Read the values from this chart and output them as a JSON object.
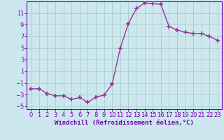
{
  "x": [
    0,
    1,
    2,
    3,
    4,
    5,
    6,
    7,
    8,
    9,
    10,
    11,
    12,
    13,
    14,
    15,
    16,
    17,
    18,
    19,
    20,
    21,
    22,
    23
  ],
  "y": [
    -2,
    -2,
    -2.8,
    -3.2,
    -3.2,
    -3.8,
    -3.5,
    -4.3,
    -3.4,
    -3.1,
    -1.2,
    5.0,
    9.2,
    11.8,
    12.7,
    12.6,
    12.5,
    8.7,
    8.1,
    7.7,
    7.5,
    7.5,
    7.0,
    6.3
  ],
  "line_color": "#993399",
  "marker": "+",
  "marker_size": 4,
  "marker_lw": 1.2,
  "bg_color": "#cce8ee",
  "grid_color": "#aacccc",
  "xlabel": "Windchill (Refroidissement éolien,°C)",
  "ylim": [
    -5.5,
    13.0
  ],
  "xlim": [
    -0.5,
    23.5
  ],
  "yticks": [
    -5,
    -3,
    -1,
    1,
    3,
    5,
    7,
    9,
    11
  ],
  "xtick_labels": [
    "0",
    "1",
    "2",
    "3",
    "4",
    "5",
    "6",
    "7",
    "8",
    "9",
    "10",
    "11",
    "12",
    "13",
    "14",
    "15",
    "16",
    "17",
    "18",
    "19",
    "20",
    "21",
    "22",
    "23"
  ],
  "tick_color": "#7700aa",
  "line_width": 1.0,
  "label_fontsize": 6.5,
  "tick_fontsize": 6.0
}
